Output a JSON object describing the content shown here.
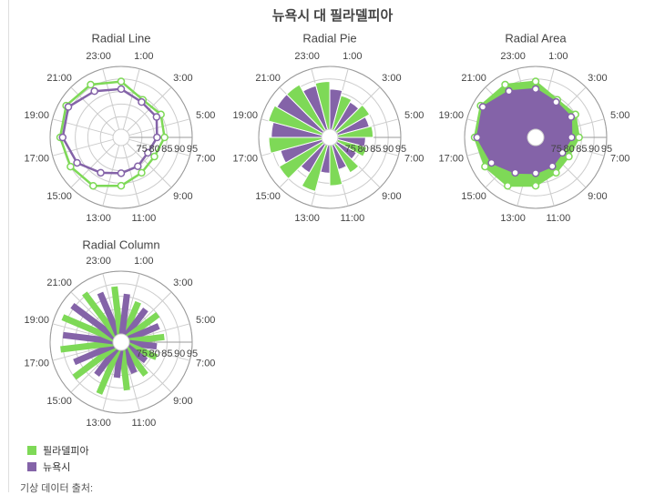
{
  "title": "뉴욕시 대 필라델피아",
  "source_note": "기상 데이터 출처:",
  "colors": {
    "philadelphia": "#7ed957",
    "newyork": "#8463a8",
    "grid": "#cccccc",
    "axis": "#999999",
    "text": "#444444"
  },
  "legend": [
    {
      "label": "필라델피아",
      "color": "#7ed957"
    },
    {
      "label": "뉴욕시",
      "color": "#8463a8"
    }
  ],
  "chart_data": [
    {
      "type": "radial-line",
      "title": "Radial Line",
      "angle_labels": [
        "1:00",
        "3:00",
        "5:00",
        "7:00",
        "9:00",
        "11:00",
        "13:00",
        "15:00",
        "17:00",
        "19:00",
        "21:00",
        "23:00"
      ],
      "radial_ticks": [
        "75",
        "80",
        "85",
        "90",
        "95"
      ],
      "r_range": [
        70,
        95
      ],
      "grid": true,
      "series": [
        {
          "name": "필라델피아",
          "values": [
            84,
            85,
            84,
            82,
            83,
            86,
            89,
            90,
            91,
            92,
            91,
            89
          ]
        },
        {
          "name": "뉴욕시",
          "values": [
            83,
            83,
            81,
            79,
            80,
            81,
            83,
            87,
            90,
            91,
            88,
            86
          ]
        }
      ]
    },
    {
      "type": "radial-pie",
      "title": "Radial Pie",
      "angle_labels": [
        "1:00",
        "3:00",
        "5:00",
        "7:00",
        "9:00",
        "11:00",
        "13:00",
        "15:00",
        "17:00",
        "19:00",
        "21:00",
        "23:00"
      ],
      "radial_ticks": [
        "75",
        "80",
        "85",
        "90",
        "95"
      ],
      "r_range": [
        70,
        95
      ],
      "grid": true,
      "series": [
        {
          "name": "필라델피아",
          "values": [
            84,
            85,
            84,
            82,
            83,
            86,
            89,
            90,
            91,
            92,
            91,
            89
          ]
        },
        {
          "name": "뉴욕시",
          "values": [
            83,
            83,
            81,
            79,
            80,
            81,
            83,
            87,
            90,
            91,
            88,
            86
          ]
        }
      ]
    },
    {
      "type": "radial-area",
      "title": "Radial Area",
      "angle_labels": [
        "1:00",
        "3:00",
        "5:00",
        "7:00",
        "9:00",
        "11:00",
        "13:00",
        "15:00",
        "17:00",
        "19:00",
        "21:00",
        "23:00"
      ],
      "radial_ticks": [
        "75",
        "80",
        "85",
        "90",
        "95"
      ],
      "r_range": [
        70,
        95
      ],
      "grid": true,
      "series": [
        {
          "name": "필라델피아",
          "values": [
            84,
            85,
            84,
            82,
            83,
            86,
            89,
            90,
            91,
            92,
            91,
            89
          ]
        },
        {
          "name": "뉴욕시",
          "values": [
            83,
            83,
            81,
            79,
            80,
            81,
            83,
            87,
            90,
            91,
            88,
            86
          ]
        }
      ]
    },
    {
      "type": "radial-column",
      "title": "Radial Column",
      "angle_labels": [
        "1:00",
        "3:00",
        "5:00",
        "7:00",
        "9:00",
        "11:00",
        "13:00",
        "15:00",
        "17:00",
        "19:00",
        "21:00",
        "23:00"
      ],
      "radial_ticks": [
        "75",
        "80",
        "85",
        "90",
        "95"
      ],
      "r_range": [
        70,
        95
      ],
      "grid": true,
      "series": [
        {
          "name": "필라델피아",
          "values": [
            84,
            85,
            84,
            82,
            83,
            86,
            89,
            90,
            91,
            92,
            91,
            89
          ]
        },
        {
          "name": "뉴욕시",
          "values": [
            83,
            83,
            81,
            79,
            80,
            81,
            83,
            87,
            90,
            91,
            88,
            86
          ]
        }
      ]
    }
  ]
}
